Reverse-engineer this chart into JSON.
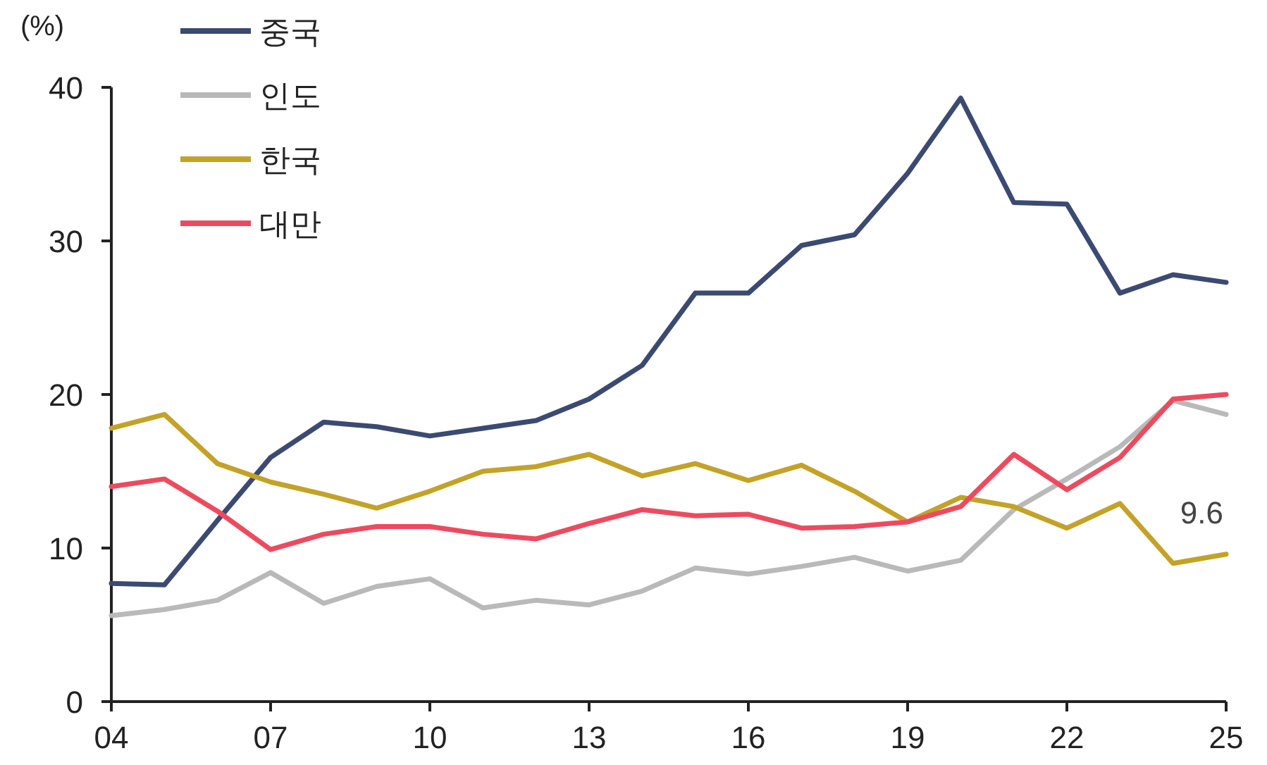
{
  "chart_data": {
    "type": "line",
    "ylabel": "(%)",
    "x": [
      2004,
      2005,
      2006,
      2007,
      2008,
      2009,
      2010,
      2011,
      2012,
      2013,
      2014,
      2015,
      2016,
      2017,
      2018,
      2019,
      2020,
      2021,
      2022,
      2023,
      2024,
      2025
    ],
    "xlim": [
      2004,
      2025
    ],
    "xticks": [
      {
        "value": 2004,
        "label": "04"
      },
      {
        "value": 2007,
        "label": "07"
      },
      {
        "value": 2010,
        "label": "10"
      },
      {
        "value": 2013,
        "label": "13"
      },
      {
        "value": 2016,
        "label": "16"
      },
      {
        "value": 2019,
        "label": "19"
      },
      {
        "value": 2022,
        "label": "22"
      },
      {
        "value": 2025,
        "label": "25"
      }
    ],
    "ylim": [
      0,
      40
    ],
    "yticks": [
      0,
      10,
      20,
      30,
      40
    ],
    "grid": false,
    "legend": "top left",
    "marker": "none",
    "line_style": "solid",
    "series": [
      {
        "name": "중국",
        "color": "#3b4a72",
        "values": [
          7.7,
          7.6,
          11.8,
          15.9,
          18.2,
          17.9,
          17.3,
          17.8,
          18.3,
          19.7,
          21.9,
          26.6,
          26.6,
          29.7,
          30.4,
          34.4,
          39.3,
          32.5,
          32.4,
          26.6,
          27.8,
          27.3
        ]
      },
      {
        "name": "인도",
        "color": "#b9b9b9",
        "values": [
          5.6,
          6.0,
          6.6,
          8.4,
          6.4,
          7.5,
          8.0,
          6.1,
          6.6,
          6.3,
          7.2,
          8.7,
          8.3,
          8.8,
          9.4,
          8.5,
          9.2,
          12.5,
          14.5,
          16.6,
          19.6,
          18.7
        ]
      },
      {
        "name": "한국",
        "color": "#c4a227",
        "values": [
          17.8,
          18.7,
          15.5,
          14.3,
          13.5,
          12.6,
          13.7,
          15.0,
          15.3,
          16.1,
          14.7,
          15.5,
          14.4,
          15.4,
          13.7,
          11.7,
          13.3,
          12.7,
          11.3,
          12.9,
          9.0,
          9.6
        ]
      },
      {
        "name": "대만",
        "color": "#ee4a5e",
        "values": [
          14.0,
          14.5,
          12.4,
          9.9,
          10.9,
          11.4,
          11.4,
          10.9,
          10.6,
          11.6,
          12.5,
          12.1,
          12.2,
          11.3,
          11.4,
          11.7,
          12.7,
          16.1,
          13.8,
          15.9,
          19.7,
          20.0
        ]
      }
    ],
    "annotations": [
      {
        "text": "9.6",
        "x": 2025,
        "y": 9.6
      }
    ]
  }
}
